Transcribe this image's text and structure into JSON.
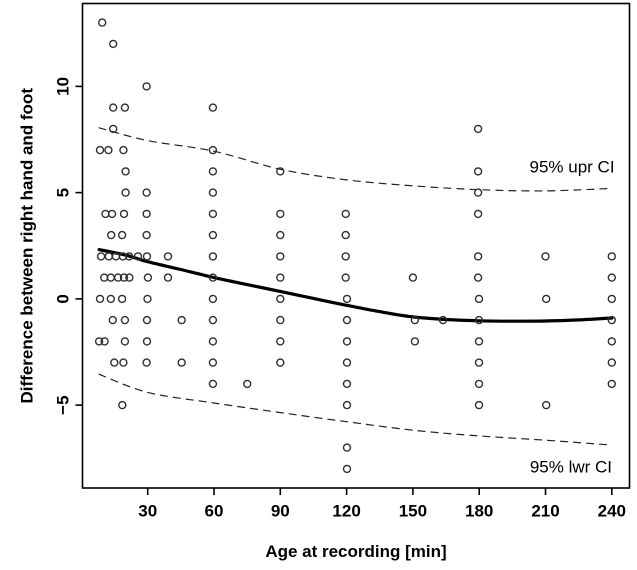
{
  "chart_data": {
    "type": "scatter",
    "title": "",
    "xlabel": "Age at recording [min]",
    "ylabel": "Difference between right hand and foot",
    "x_ticks": [
      30,
      60,
      90,
      120,
      150,
      180,
      210,
      240
    ],
    "y_ticks": [
      -5,
      0,
      5,
      10
    ],
    "xlim": [
      0.5,
      248
    ],
    "ylim": [
      -8.9,
      13.9
    ],
    "grid": false,
    "legend_position": "none",
    "point_style": "open-circle",
    "points": [
      [
        9.4,
        13
      ],
      [
        14.4,
        12
      ],
      [
        29.5,
        10
      ],
      [
        14.4,
        9
      ],
      [
        19.7,
        9
      ],
      [
        59.5,
        9
      ],
      [
        14.4,
        8
      ],
      [
        179.5,
        8
      ],
      [
        8.4,
        7
      ],
      [
        12.2,
        7
      ],
      [
        19,
        7
      ],
      [
        59.5,
        7
      ],
      [
        20,
        6
      ],
      [
        59.5,
        6
      ],
      [
        90,
        6
      ],
      [
        179.5,
        6
      ],
      [
        20,
        5
      ],
      [
        29.5,
        5
      ],
      [
        59.5,
        5
      ],
      [
        179.5,
        5
      ],
      [
        10.9,
        4
      ],
      [
        13.9,
        4
      ],
      [
        19.3,
        4
      ],
      [
        29.5,
        4
      ],
      [
        59.5,
        4
      ],
      [
        90,
        4
      ],
      [
        119.6,
        4
      ],
      [
        179.5,
        4
      ],
      [
        13.5,
        3
      ],
      [
        18.4,
        3
      ],
      [
        29.5,
        3
      ],
      [
        59.5,
        3
      ],
      [
        90,
        3
      ],
      [
        119.6,
        3
      ],
      [
        8.9,
        2
      ],
      [
        12.4,
        2
      ],
      [
        15.6,
        2
      ],
      [
        18.8,
        2
      ],
      [
        21.6,
        2
      ],
      [
        25.6,
        2
      ],
      [
        29.7,
        2
      ],
      [
        39.2,
        2
      ],
      [
        59.5,
        2
      ],
      [
        90,
        2
      ],
      [
        119.6,
        2
      ],
      [
        179.5,
        2
      ],
      [
        210,
        2
      ],
      [
        240,
        2
      ],
      [
        10.3,
        1
      ],
      [
        13.3,
        1
      ],
      [
        16.6,
        1
      ],
      [
        19.3,
        1
      ],
      [
        21.7,
        1
      ],
      [
        30.1,
        1
      ],
      [
        39.2,
        1
      ],
      [
        59.5,
        1
      ],
      [
        90,
        1
      ],
      [
        119.6,
        1
      ],
      [
        150,
        1
      ],
      [
        179.5,
        1
      ],
      [
        240,
        1
      ],
      [
        8.4,
        0
      ],
      [
        13.3,
        0
      ],
      [
        18.4,
        0
      ],
      [
        29.9,
        0
      ],
      [
        59.5,
        0
      ],
      [
        90,
        0
      ],
      [
        120.2,
        0
      ],
      [
        179.9,
        0
      ],
      [
        210.3,
        0
      ],
      [
        240,
        0
      ],
      [
        14.2,
        -1
      ],
      [
        19.7,
        -1
      ],
      [
        29.7,
        -1
      ],
      [
        45.4,
        -1
      ],
      [
        59.5,
        -1
      ],
      [
        90,
        -1
      ],
      [
        120.2,
        -1
      ],
      [
        150.9,
        -1
      ],
      [
        163.6,
        -1
      ],
      [
        179.9,
        -1
      ],
      [
        240,
        -1
      ],
      [
        8,
        -2
      ],
      [
        10.5,
        -2
      ],
      [
        19.7,
        -2
      ],
      [
        29.7,
        -2
      ],
      [
        59.5,
        -2
      ],
      [
        90,
        -2
      ],
      [
        120.2,
        -2
      ],
      [
        150.9,
        -2
      ],
      [
        179.9,
        -2
      ],
      [
        240,
        -2
      ],
      [
        14.9,
        -3
      ],
      [
        19,
        -3
      ],
      [
        29.5,
        -3
      ],
      [
        45.4,
        -3
      ],
      [
        59.5,
        -3
      ],
      [
        90,
        -3
      ],
      [
        120.2,
        -3
      ],
      [
        179.9,
        -3
      ],
      [
        240,
        -3
      ],
      [
        59.5,
        -4
      ],
      [
        75,
        -4
      ],
      [
        120.2,
        -4
      ],
      [
        179.9,
        -4
      ],
      [
        240,
        -4
      ],
      [
        18.5,
        -5
      ],
      [
        120.2,
        -5
      ],
      [
        179.9,
        -5
      ],
      [
        210.3,
        -5
      ],
      [
        120.2,
        -7
      ],
      [
        120.2,
        -8
      ]
    ],
    "series": [
      {
        "name": "fitted-curve",
        "style": "solid-thick",
        "points": [
          [
            8,
            2.32
          ],
          [
            20,
            2.06
          ],
          [
            30,
            1.75
          ],
          [
            45,
            1.38
          ],
          [
            60,
            1.0
          ],
          [
            75,
            0.67
          ],
          [
            90,
            0.35
          ],
          [
            105,
            0.02
          ],
          [
            120,
            -0.3
          ],
          [
            135,
            -0.6
          ],
          [
            150,
            -0.85
          ],
          [
            165,
            -0.97
          ],
          [
            180,
            -1.03
          ],
          [
            195,
            -1.05
          ],
          [
            210,
            -1.04
          ],
          [
            225,
            -0.99
          ],
          [
            240,
            -0.9
          ]
        ]
      },
      {
        "name": "95% upr CI",
        "style": "dashed",
        "points": [
          [
            8,
            8.05
          ],
          [
            30,
            7.45
          ],
          [
            60,
            6.95
          ],
          [
            90,
            6.1
          ],
          [
            120,
            5.6
          ],
          [
            150,
            5.32
          ],
          [
            180,
            5.14
          ],
          [
            210,
            5.08
          ],
          [
            240,
            5.2
          ]
        ]
      },
      {
        "name": "95% lwr CI",
        "style": "dashed",
        "points": [
          [
            8,
            -3.55
          ],
          [
            30,
            -4.4
          ],
          [
            60,
            -4.9
          ],
          [
            90,
            -5.35
          ],
          [
            120,
            -5.78
          ],
          [
            150,
            -6.18
          ],
          [
            180,
            -6.45
          ],
          [
            210,
            -6.65
          ],
          [
            240,
            -6.88
          ]
        ]
      }
    ],
    "annotations": [
      {
        "text": "95% upr CI",
        "x": 222,
        "y": 6.2
      },
      {
        "text": "95% lwr CI",
        "x": 221.5,
        "y": -7.9
      }
    ]
  },
  "colors": {
    "foreground": "#000000",
    "background": "#ffffff",
    "point_stroke": "#303030",
    "curve": "#000000",
    "dashed": "#222222"
  }
}
